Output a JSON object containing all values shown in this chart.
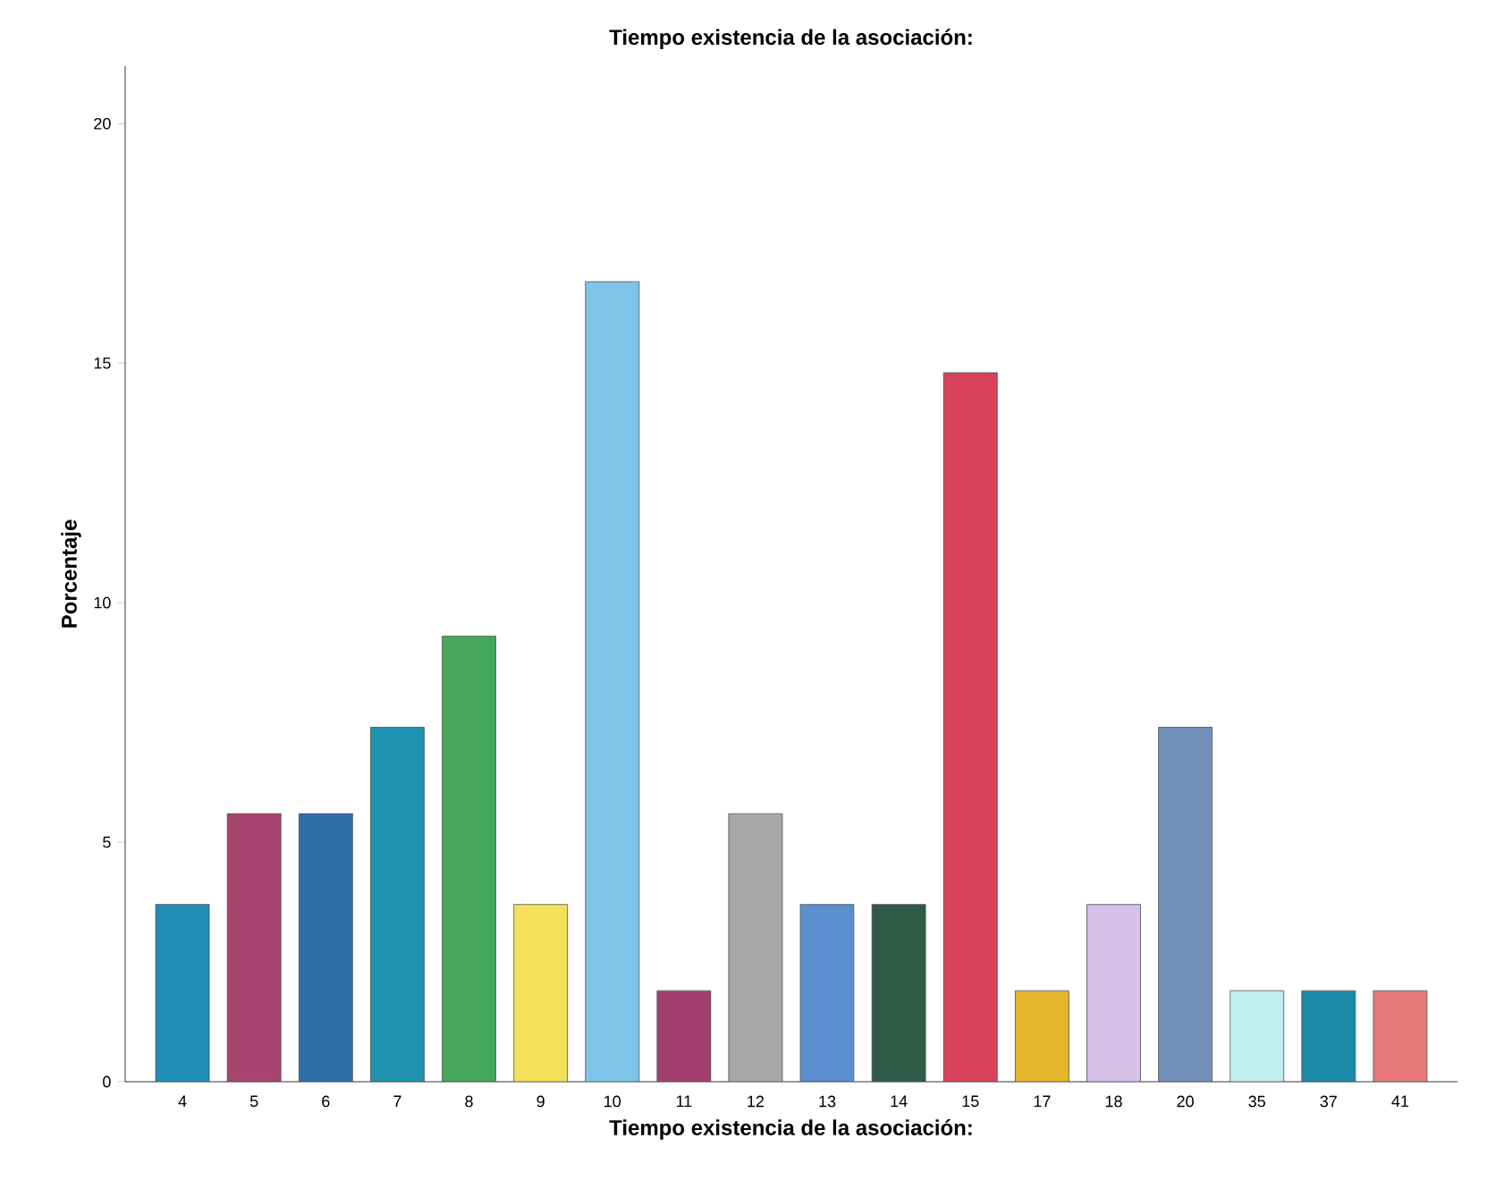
{
  "chart_data": {
    "type": "bar",
    "title": "Tiempo existencia de la asociación:",
    "xlabel": "Tiempo existencia de la asociación:",
    "ylabel": "Porcentaje",
    "categories": [
      "4",
      "5",
      "6",
      "7",
      "8",
      "9",
      "10",
      "11",
      "12",
      "13",
      "14",
      "15",
      "17",
      "18",
      "20",
      "35",
      "37",
      "41"
    ],
    "values": [
      3.7,
      5.6,
      5.6,
      7.4,
      9.3,
      3.7,
      16.7,
      1.9,
      5.6,
      3.7,
      3.7,
      14.8,
      1.9,
      3.7,
      7.4,
      1.9,
      1.9,
      1.9
    ],
    "colors": [
      "#1f8fb8",
      "#a8456e",
      "#2e6fa8",
      "#1e93b0",
      "#45a85a",
      "#f5e05a",
      "#7ec4e8",
      "#a33f6e",
      "#a8a8a8",
      "#5b8fd0",
      "#2f5a48",
      "#d9435a",
      "#e6b52e",
      "#d8c0e8",
      "#7090b8",
      "#c0eef0",
      "#1a8aa8",
      "#e87878"
    ],
    "ylim": [
      0,
      21.2
    ],
    "yticks": [
      0,
      5,
      10,
      15,
      20
    ]
  }
}
